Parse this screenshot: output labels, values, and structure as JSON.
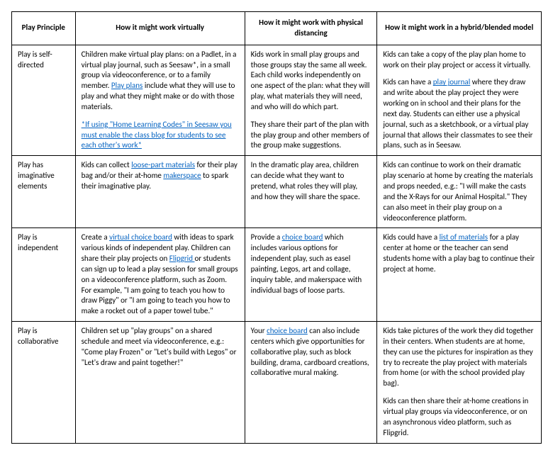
{
  "columns": [
    "Play Principle",
    "How it might work virtually",
    "How it might work with physical distancing",
    "How it might work in a hybrid/blended model"
  ],
  "rows": [
    {
      "principle": "Play is self-directed",
      "virtual": {
        "p1a": "Children make virtual play plans: on a Padlet, in a virtual play journal, such as Seesaw*, in a small group via videoconference, or to a family member.  ",
        "link1": "Play plans",
        "p1b": " include what they will use to play and what they might make or do with those materials.",
        "link2": "*If using \"Home Learning Codes\" in Seesaw you must enable the class blog for students to see each other's work*"
      },
      "physical": {
        "p1": "Kids work in small play groups and those groups stay the same all week. Each child works independently on one aspect of the plan: what they will play, what materials they will need, and who will do which part.",
        "p2": "They share their part of the plan with the play group and other members of the group make suggestions."
      },
      "hybrid": {
        "p1": "Kids can take a copy of the play plan home to work on their play project or access it virtually.",
        "p2a": "Kids can have a ",
        "link1": "play journal",
        "p2b": " where they draw and write about the play project they were working on in school and their plans for the next day. Students can either use a physical journal, such as a sketchbook, or a virtual play journal that allows their classmates to see their plans, such as in Seesaw."
      }
    },
    {
      "principle": "Play has imaginative elements",
      "virtual": {
        "p1a": "Kids can collect ",
        "link1": "loose-part materials",
        "p1b": " for their play bag and/or their at-home ",
        "link2": "makerspace",
        "p1c": " to spark their imaginative play."
      },
      "physical": {
        "p1": "In the dramatic play area, children can decide what they want to pretend, what roles they will play, and how they will share the space."
      },
      "hybrid": {
        "p1": "Kids can continue to work on their dramatic play scenario at home by creating the materials and props needed, e.g.: \"I will make the casts and the X-Rays for our Animal Hospital.\" They can also meet in their play group on a videoconference platform."
      }
    },
    {
      "principle": "Play is independent",
      "virtual": {
        "p1a": "Create a ",
        "link1": "virtual choice board",
        "p1b": " with ideas to spark various kinds of independent play. Children can share their play projects on ",
        "link2": "Flipgrid ",
        "p1c": " or students can sign up to lead a play session for small groups on a videoconference platform, such as Zoom. For example, \"I am going to teach you how to draw Piggy\" or \"I am going to teach you how to make a rocket out of a paper towel tube.\""
      },
      "physical": {
        "p1a": "Provide a ",
        "link1": "choice board",
        "p1b": " which includes various options for independent play, such as easel painting, Legos, art and collage, inquiry table, and makerspace with individual bags of loose parts."
      },
      "hybrid": {
        "p1a": "Kids could have a ",
        "link1": "list of materials",
        "p1b": " for a play center at home or the teacher can send students home with a play bag to continue their project at home."
      }
    },
    {
      "principle": "Play is collaborative",
      "virtual": {
        "p1": "Children set up \"play groups\" on a shared schedule and meet via videoconference, e.g.: \"Come play Frozen\" or \"Let's build with Legos\" or \"Let's draw and paint together!\""
      },
      "physical": {
        "p1a": "Your ",
        "link1": "choice board",
        "p1b": " can also include centers which give opportunities for collaborative play, such as block building, drama, cardboard creations, collaborative mural making."
      },
      "hybrid": {
        "p1": "Kids take pictures of the work they did together in their centers. When students are at home, they can use the pictures for inspiration as they try to recreate the play project with materials from home (or with the school provided play bag).",
        "p2": "Kids can then share their at-home creations in virtual play groups via videoconference, or on an asynchronous video platform, such as Flipgrid."
      }
    }
  ]
}
